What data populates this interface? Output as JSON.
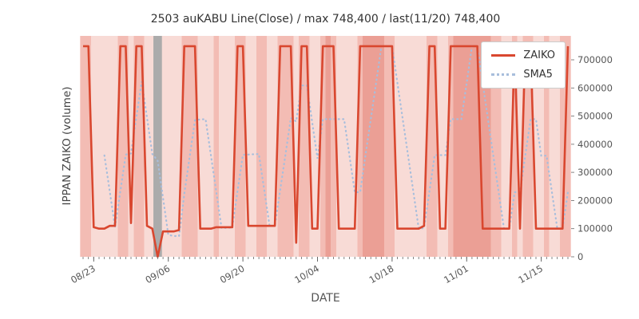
{
  "chart_data": {
    "type": "line",
    "title": "2503 auKABU Line(Close) / max 748,400 / last(11/20) 748,400",
    "xlabel": "DATE",
    "ylabel": "IPPAN ZAIKO (volume)",
    "legend_position": "upper right",
    "grid": false,
    "y_axis_side": "right",
    "ylim": [
      0,
      785000
    ],
    "y_ticks": [
      0,
      100000,
      200000,
      300000,
      400000,
      500000,
      600000,
      700000
    ],
    "x_tick_labels": [
      "08/23",
      "09/06",
      "09/20",
      "10/04",
      "10/18",
      "11/01",
      "11/15"
    ],
    "x_dates": [
      "08/21",
      "08/22",
      "08/23",
      "08/24",
      "08/25",
      "08/26",
      "08/27",
      "08/28",
      "08/29",
      "08/30",
      "08/31",
      "09/01",
      "09/02",
      "09/03",
      "09/04",
      "09/05",
      "09/06",
      "09/07",
      "09/08",
      "09/09",
      "09/10",
      "09/11",
      "09/12",
      "09/13",
      "09/14",
      "09/15",
      "09/16",
      "09/17",
      "09/18",
      "09/19",
      "09/20",
      "09/21",
      "09/22",
      "09/23",
      "09/24",
      "09/25",
      "09/26",
      "09/27",
      "09/28",
      "09/29",
      "09/30",
      "10/01",
      "10/02",
      "10/03",
      "10/04",
      "10/05",
      "10/06",
      "10/07",
      "10/08",
      "10/09",
      "10/10",
      "10/11",
      "10/12",
      "10/13",
      "10/14",
      "10/15",
      "10/16",
      "10/17",
      "10/18",
      "10/19",
      "10/20",
      "10/21",
      "10/22",
      "10/23",
      "10/24",
      "10/25",
      "10/26",
      "10/27",
      "10/28",
      "10/29",
      "10/30",
      "10/31",
      "11/01",
      "11/02",
      "11/03",
      "11/04",
      "11/05",
      "11/06",
      "11/07",
      "11/08",
      "11/09",
      "11/10",
      "11/11",
      "11/12",
      "11/13",
      "11/14",
      "11/15",
      "11/16",
      "11/17",
      "11/18",
      "11/19",
      "11/20"
    ],
    "series": [
      {
        "name": "ZAIKO",
        "style": "solid",
        "color": "#d9472f",
        "max": 748400,
        "last_date": "11/20",
        "last_value": 748400,
        "values": [
          748400,
          748400,
          105000,
          100000,
          100000,
          110000,
          110000,
          748400,
          748400,
          120000,
          748400,
          748400,
          110000,
          100000,
          0,
          90000,
          90000,
          90000,
          95000,
          748400,
          748400,
          748400,
          100000,
          100000,
          100000,
          105000,
          105000,
          105000,
          105000,
          748400,
          748400,
          110000,
          110000,
          110000,
          110000,
          110000,
          110000,
          748400,
          748400,
          748400,
          50000,
          748400,
          748400,
          100000,
          100000,
          748400,
          748400,
          748400,
          100000,
          100000,
          100000,
          100000,
          748400,
          748400,
          748400,
          748400,
          748400,
          748400,
          748400,
          100000,
          100000,
          100000,
          100000,
          100000,
          110000,
          748400,
          748400,
          100000,
          100000,
          748400,
          748400,
          748400,
          748400,
          748400,
          748400,
          100000,
          100000,
          100000,
          100000,
          100000,
          100000,
          748400,
          100000,
          748400,
          748400,
          100000,
          100000,
          100000,
          100000,
          100000,
          100000,
          748400
        ]
      },
      {
        "name": "SMA5",
        "style": "dotted",
        "color": "#a8bedc",
        "window": 5,
        "derived_from": "5-day moving average of ZAIKO"
      }
    ],
    "band_levels": [
      2,
      2,
      1,
      1,
      1,
      1,
      1,
      2,
      2,
      1,
      2,
      2,
      1,
      1,
      1,
      1,
      1,
      1,
      1,
      2,
      2,
      2,
      1,
      1,
      1,
      2,
      1,
      1,
      1,
      2,
      2,
      1,
      1,
      2,
      2,
      1,
      1,
      2,
      2,
      2,
      1,
      2,
      2,
      1,
      1,
      2,
      3,
      2,
      1,
      1,
      1,
      1,
      2,
      3,
      3,
      3,
      3,
      2,
      2,
      1,
      1,
      1,
      1,
      1,
      1,
      2,
      2,
      1,
      1,
      2,
      3,
      3,
      3,
      3,
      3,
      3,
      3,
      2,
      2,
      1,
      1,
      2,
      1,
      2,
      2,
      1,
      1,
      2,
      1,
      1,
      2,
      2
    ],
    "gray_band_index": 14,
    "colors": {
      "plot_bg": "#fbe9e6",
      "band_levels": {
        "1": "#f8dbd6",
        "2": "#f3bcb4",
        "3": "#eb9f95"
      },
      "gray_band": "#ababab",
      "tick_mark": "#666666",
      "tick_text": "#555555",
      "title_text": "#333333"
    }
  }
}
